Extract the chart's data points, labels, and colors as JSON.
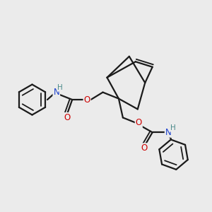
{
  "bg_color": "#ebebeb",
  "bond_color": "#1a1a1a",
  "bond_width": 1.6,
  "atom_colors": {
    "C": "#1a1a1a",
    "N": "#1a3fcc",
    "O": "#cc0000",
    "H": "#4a8a8a"
  },
  "font_size_atom": 8.5,
  "figsize": [
    3.0,
    3.0
  ],
  "dpi": 100,
  "xlim": [
    0,
    10
  ],
  "ylim": [
    0,
    10
  ]
}
